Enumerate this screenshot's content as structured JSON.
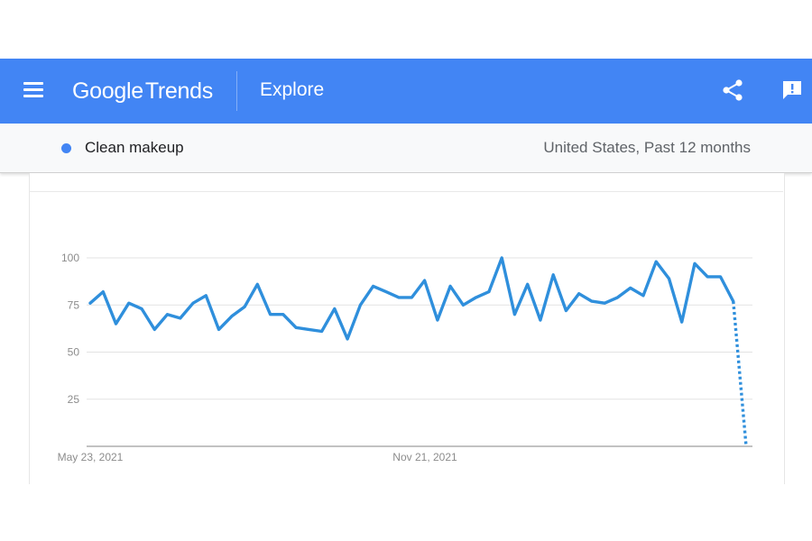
{
  "header": {
    "brand_google": "Google",
    "brand_trends": "Trends",
    "explore_label": "Explore",
    "accent_color": "#4285f4"
  },
  "icons": {
    "menu": "menu-icon",
    "share": "share-icon",
    "feedback": "feedback-icon"
  },
  "search": {
    "term": "Clean makeup",
    "term_color": "#4285f4",
    "scope": "United States, Past 12 months"
  },
  "chart_data": {
    "type": "line",
    "yticks": [
      25,
      50,
      75,
      100
    ],
    "xticks": [
      "May 23, 2021",
      "Nov 21, 2021"
    ],
    "ylim": [
      0,
      100
    ],
    "grid": true,
    "series": [
      {
        "name": "Clean makeup",
        "color": "#2f8fdc",
        "values": [
          76,
          82,
          65,
          76,
          73,
          62,
          70,
          68,
          76,
          80,
          62,
          69,
          74,
          86,
          70,
          70,
          63,
          62,
          61,
          73,
          57,
          75,
          85,
          82,
          79,
          79,
          88,
          67,
          85,
          75,
          79,
          82,
          100,
          70,
          86,
          67,
          91,
          72,
          81,
          77,
          76,
          79,
          84,
          80,
          98,
          89,
          66,
          97,
          90,
          90,
          77
        ],
        "partial_last": 0
      }
    ]
  }
}
